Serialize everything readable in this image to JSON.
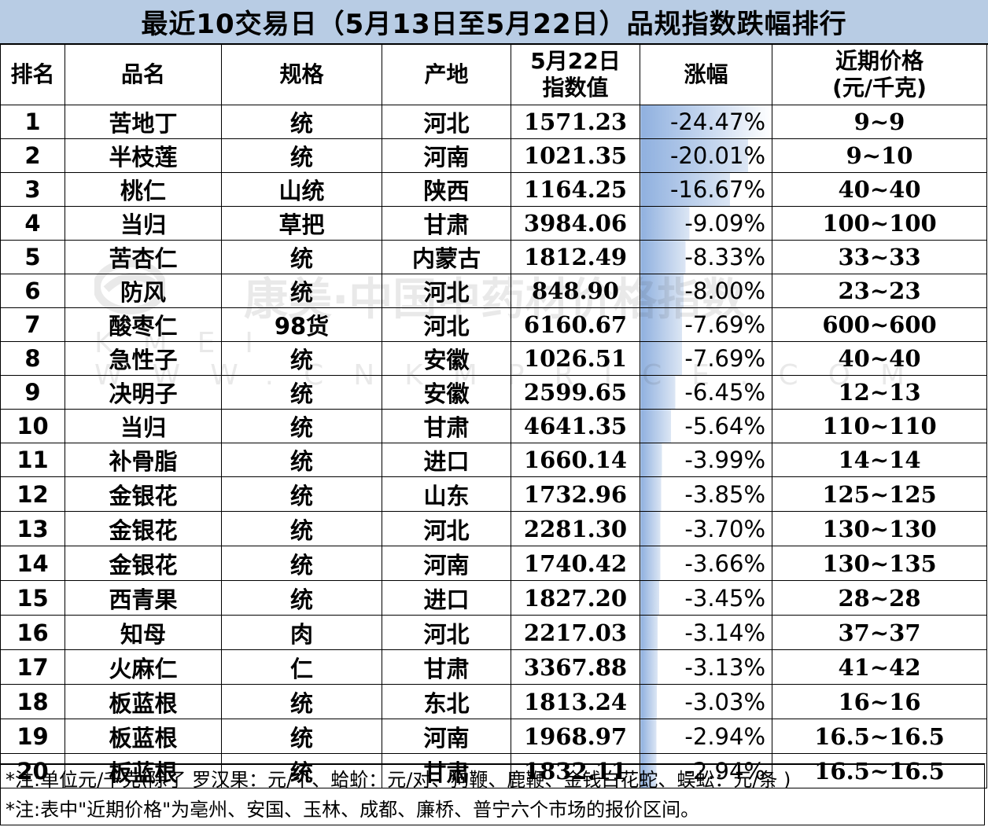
{
  "title": "最近10交易日（5月13日至5月22日）品规指数跌幅排行",
  "headers": {
    "rank": "排名",
    "name": "品名",
    "spec": "规格",
    "origin": "产地",
    "index_l1": "5月22日",
    "index_l2": "指数值",
    "change": "涨幅",
    "price_l1": "近期价格",
    "price_l2": "(元/千克)"
  },
  "rows": [
    {
      "rank": "1",
      "name": "苦地丁",
      "spec": "统",
      "origin": "河北",
      "index": "1571.23",
      "change": "-24.47%",
      "price": "9~9",
      "bar": 0.2447
    },
    {
      "rank": "2",
      "name": "半枝莲",
      "spec": "统",
      "origin": "河南",
      "index": "1021.35",
      "change": "-20.01%",
      "price": "9~10",
      "bar": 0.2001
    },
    {
      "rank": "3",
      "name": "桃仁",
      "spec": "山统",
      "origin": "陕西",
      "index": "1164.25",
      "change": "-16.67%",
      "price": "40~40",
      "bar": 0.1667
    },
    {
      "rank": "4",
      "name": "当归",
      "spec": "草把",
      "origin": "甘肃",
      "index": "3984.06",
      "change": "-9.09%",
      "price": "100~100",
      "bar": 0.0909
    },
    {
      "rank": "5",
      "name": "苦杏仁",
      "spec": "统",
      "origin": "内蒙古",
      "index": "1812.49",
      "change": "-8.33%",
      "price": "33~33",
      "bar": 0.0833
    },
    {
      "rank": "6",
      "name": "防风",
      "spec": "统",
      "origin": "河北",
      "index": "848.90",
      "change": "-8.00%",
      "price": "23~23",
      "bar": 0.08
    },
    {
      "rank": "7",
      "name": "酸枣仁",
      "spec": "98货",
      "origin": "河北",
      "index": "6160.67",
      "change": "-7.69%",
      "price": "600~600",
      "bar": 0.0769
    },
    {
      "rank": "8",
      "name": "急性子",
      "spec": "统",
      "origin": "安徽",
      "index": "1026.51",
      "change": "-7.69%",
      "price": "40~40",
      "bar": 0.0769
    },
    {
      "rank": "9",
      "name": "决明子",
      "spec": "统",
      "origin": "安徽",
      "index": "2599.65",
      "change": "-6.45%",
      "price": "12~13",
      "bar": 0.0645
    },
    {
      "rank": "10",
      "name": "当归",
      "spec": "统",
      "origin": "甘肃",
      "index": "4641.35",
      "change": "-5.64%",
      "price": "110~110",
      "bar": 0.0564
    },
    {
      "rank": "11",
      "name": "补骨脂",
      "spec": "统",
      "origin": "进口",
      "index": "1660.14",
      "change": "-3.99%",
      "price": "14~14",
      "bar": 0.0399
    },
    {
      "rank": "12",
      "name": "金银花",
      "spec": "统",
      "origin": "山东",
      "index": "1732.96",
      "change": "-3.85%",
      "price": "125~125",
      "bar": 0.0385
    },
    {
      "rank": "13",
      "name": "金银花",
      "spec": "统",
      "origin": "河北",
      "index": "2281.30",
      "change": "-3.70%",
      "price": "130~130",
      "bar": 0.037
    },
    {
      "rank": "14",
      "name": "金银花",
      "spec": "统",
      "origin": "河南",
      "index": "1740.42",
      "change": "-3.66%",
      "price": "130~135",
      "bar": 0.0366
    },
    {
      "rank": "15",
      "name": "西青果",
      "spec": "统",
      "origin": "进口",
      "index": "1827.20",
      "change": "-3.45%",
      "price": "28~28",
      "bar": 0.0345
    },
    {
      "rank": "16",
      "name": "知母",
      "spec": "肉",
      "origin": "河北",
      "index": "2217.03",
      "change": "-3.14%",
      "price": "37~37",
      "bar": 0.0314
    },
    {
      "rank": "17",
      "name": "火麻仁",
      "spec": "仁",
      "origin": "甘肃",
      "index": "3367.88",
      "change": "-3.13%",
      "price": "41~42",
      "bar": 0.0313
    },
    {
      "rank": "18",
      "name": "板蓝根",
      "spec": "统",
      "origin": "东北",
      "index": "1813.24",
      "change": "-3.03%",
      "price": "16~16",
      "bar": 0.0303
    },
    {
      "rank": "19",
      "name": "板蓝根",
      "spec": "统",
      "origin": "河南",
      "index": "1968.97",
      "change": "-2.94%",
      "price": "16.5~16.5",
      "bar": 0.0294
    },
    {
      "rank": "20",
      "name": "板蓝根",
      "spec": "统",
      "origin": "甘肃",
      "index": "1832.11",
      "change": "-2.94%",
      "price": "16.5~16.5",
      "bar": 0.0294
    }
  ],
  "notes": [
    "*注:单位元/千克(除了 罗汉果：元/个、蛤蚧：元/对、狗鞭、鹿鞭、金钱白花蛇、蜈蚣：元/条 )",
    "*注:表中\"近期价格\"为亳州、安国、玉林、成都、廉桥、普宁六个市场的报价区间。"
  ],
  "watermark": {
    "text_cn": "康美·中国中药材价格指数",
    "text_en": "KMEI WWW.CNKMPRICE.COM"
  },
  "colors": {
    "title_bg": "#b8cce4",
    "bar_dark": "#8fb0df",
    "bar_light": "#ffffff"
  }
}
